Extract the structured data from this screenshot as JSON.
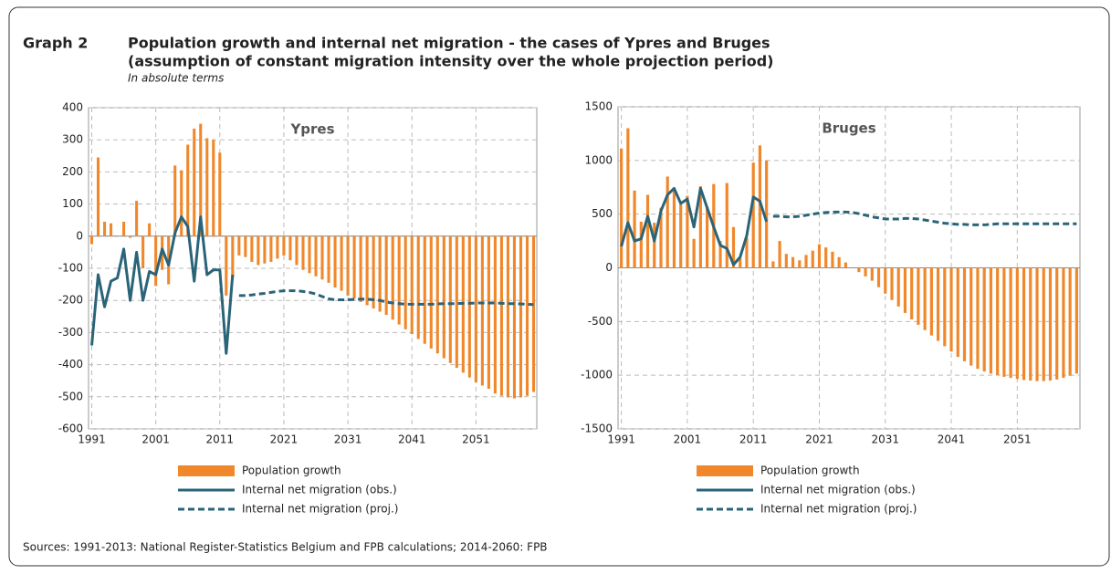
{
  "header": {
    "label": "Graph 2",
    "title": [
      "Population growth and internal net migration - the cases of Ypres and Bruges",
      "(assumption of constant migration intensity over the whole projection period)"
    ],
    "subtitle": "In absolute terms"
  },
  "source": "Sources: 1991-2013: National Register-Statistics Belgium and FPB calculations; 2014-2060: FPB",
  "chart_data": [
    {
      "type": "bar",
      "title": "Ypres",
      "x": [
        1991,
        1992,
        1993,
        1994,
        1995,
        1996,
        1997,
        1998,
        1999,
        2000,
        2001,
        2002,
        2003,
        2004,
        2005,
        2006,
        2007,
        2008,
        2009,
        2010,
        2011,
        2012,
        2013,
        2014,
        2015,
        2016,
        2017,
        2018,
        2019,
        2020,
        2021,
        2022,
        2023,
        2024,
        2025,
        2026,
        2027,
        2028,
        2029,
        2030,
        2031,
        2032,
        2033,
        2034,
        2035,
        2036,
        2037,
        2038,
        2039,
        2040,
        2041,
        2042,
        2043,
        2044,
        2045,
        2046,
        2047,
        2048,
        2049,
        2050,
        2051,
        2052,
        2053,
        2054,
        2055,
        2056,
        2057,
        2058,
        2059,
        2060
      ],
      "xlim": [
        1990.5,
        2060.5
      ],
      "xticks": [
        1991,
        2001,
        2011,
        2021,
        2031,
        2041,
        2051
      ],
      "ylim": [
        -600,
        400
      ],
      "yticks": [
        -600,
        -500,
        -400,
        -300,
        -200,
        -100,
        0,
        100,
        200,
        300,
        400
      ],
      "grid": true,
      "series": [
        {
          "name": "Population growth",
          "type": "bar",
          "color": "#f0882b",
          "values": [
            -25,
            245,
            45,
            40,
            0,
            45,
            -5,
            110,
            -100,
            40,
            -155,
            -105,
            -150,
            220,
            205,
            285,
            335,
            350,
            305,
            300,
            260,
            -185,
            -130,
            -60,
            -65,
            -80,
            -90,
            -85,
            -80,
            -70,
            -60,
            -75,
            -90,
            -105,
            -115,
            -125,
            -135,
            -145,
            -160,
            -170,
            -185,
            -195,
            -205,
            -215,
            -225,
            -235,
            -245,
            -260,
            -275,
            -290,
            -305,
            -320,
            -335,
            -350,
            -365,
            -380,
            -395,
            -410,
            -425,
            -440,
            -455,
            -465,
            -475,
            -490,
            -497,
            -502,
            -505,
            -502,
            -497,
            -485
          ]
        },
        {
          "name": "Internal net migration (obs.)",
          "type": "line",
          "color": "#2a6478",
          "dashed": false,
          "values": [
            -340,
            -120,
            -220,
            -140,
            -130,
            -40,
            -200,
            -50,
            -200,
            -110,
            -120,
            -40,
            -90,
            10,
            60,
            30,
            -140,
            60,
            -120,
            -105,
            -105,
            -365,
            -120,
            null,
            null,
            null,
            null,
            null,
            null,
            null,
            null,
            null,
            null,
            null,
            null,
            null,
            null,
            null,
            null,
            null,
            null,
            null,
            null,
            null,
            null,
            null,
            null,
            null,
            null,
            null,
            null,
            null,
            null,
            null,
            null,
            null,
            null,
            null,
            null,
            null,
            null,
            null,
            null,
            null,
            null,
            null,
            null,
            null,
            null,
            null
          ]
        },
        {
          "name": "Internal net migration (proj.)",
          "type": "line",
          "color": "#2a6478",
          "dashed": true,
          "values": [
            null,
            null,
            null,
            null,
            null,
            null,
            null,
            null,
            null,
            null,
            null,
            null,
            null,
            null,
            null,
            null,
            null,
            null,
            null,
            null,
            null,
            null,
            null,
            -185,
            -185,
            -183,
            -180,
            -178,
            -175,
            -172,
            -170,
            -170,
            -170,
            -172,
            -175,
            -180,
            -188,
            -195,
            -198,
            -198,
            -198,
            -197,
            -196,
            -196,
            -198,
            -200,
            -205,
            -208,
            -210,
            -212,
            -212,
            -212,
            -212,
            -212,
            -211,
            -210,
            -210,
            -210,
            -209,
            -209,
            -208,
            -208,
            -208,
            -208,
            -209,
            -210,
            -210,
            -211,
            -212,
            -213
          ]
        }
      ]
    },
    {
      "type": "bar",
      "title": "Bruges",
      "x": [
        1991,
        1992,
        1993,
        1994,
        1995,
        1996,
        1997,
        1998,
        1999,
        2000,
        2001,
        2002,
        2003,
        2004,
        2005,
        2006,
        2007,
        2008,
        2009,
        2010,
        2011,
        2012,
        2013,
        2014,
        2015,
        2016,
        2017,
        2018,
        2019,
        2020,
        2021,
        2022,
        2023,
        2024,
        2025,
        2026,
        2027,
        2028,
        2029,
        2030,
        2031,
        2032,
        2033,
        2034,
        2035,
        2036,
        2037,
        2038,
        2039,
        2040,
        2041,
        2042,
        2043,
        2044,
        2045,
        2046,
        2047,
        2048,
        2049,
        2050,
        2051,
        2052,
        2053,
        2054,
        2055,
        2056,
        2057,
        2058,
        2059,
        2060
      ],
      "xlim": [
        1990.5,
        2060.5
      ],
      "xticks": [
        1991,
        2001,
        2011,
        2021,
        2031,
        2041,
        2051
      ],
      "ylim": [
        -1500,
        1500
      ],
      "yticks": [
        -1500,
        -1000,
        -500,
        0,
        500,
        1000,
        1500
      ],
      "grid": true,
      "series": [
        {
          "name": "Population growth",
          "type": "bar",
          "color": "#f0882b",
          "values": [
            1110,
            1300,
            720,
            430,
            680,
            420,
            560,
            850,
            720,
            590,
            670,
            270,
            760,
            570,
            780,
            250,
            790,
            380,
            90,
            280,
            980,
            1140,
            1000,
            60,
            250,
            130,
            100,
            70,
            120,
            160,
            220,
            190,
            150,
            100,
            50,
            0,
            -40,
            -80,
            -120,
            -180,
            -240,
            -300,
            -360,
            -420,
            -480,
            -530,
            -580,
            -630,
            -680,
            -730,
            -780,
            -830,
            -870,
            -910,
            -940,
            -965,
            -985,
            -1000,
            -1015,
            -1025,
            -1035,
            -1045,
            -1050,
            -1055,
            -1055,
            -1050,
            -1040,
            -1025,
            -1005,
            -985
          ]
        },
        {
          "name": "Internal net migration (obs.)",
          "type": "line",
          "color": "#2a6478",
          "dashed": false,
          "values": [
            200,
            420,
            250,
            270,
            480,
            250,
            530,
            680,
            740,
            600,
            640,
            380,
            740,
            560,
            380,
            210,
            180,
            30,
            100,
            300,
            660,
            620,
            430,
            null,
            null,
            null,
            null,
            null,
            null,
            null,
            null,
            null,
            null,
            null,
            null,
            null,
            null,
            null,
            null,
            null,
            null,
            null,
            null,
            null,
            null,
            null,
            null,
            null,
            null,
            null,
            null,
            null,
            null,
            null,
            null,
            null,
            null,
            null,
            null,
            null,
            null,
            null,
            null,
            null,
            null,
            null,
            null,
            null,
            null,
            null
          ]
        },
        {
          "name": "Internal net migration (proj.)",
          "type": "line",
          "color": "#2a6478",
          "dashed": true,
          "values": [
            null,
            null,
            null,
            null,
            null,
            null,
            null,
            null,
            null,
            null,
            null,
            null,
            null,
            null,
            null,
            null,
            null,
            null,
            null,
            null,
            null,
            null,
            null,
            480,
            480,
            475,
            475,
            480,
            490,
            500,
            510,
            515,
            520,
            520,
            520,
            515,
            505,
            490,
            475,
            465,
            455,
            455,
            455,
            460,
            460,
            455,
            445,
            435,
            425,
            415,
            410,
            405,
            405,
            400,
            400,
            400,
            405,
            410,
            410,
            410,
            410,
            410,
            410,
            410,
            410,
            410,
            410,
            410,
            410,
            410
          ]
        }
      ]
    }
  ]
}
